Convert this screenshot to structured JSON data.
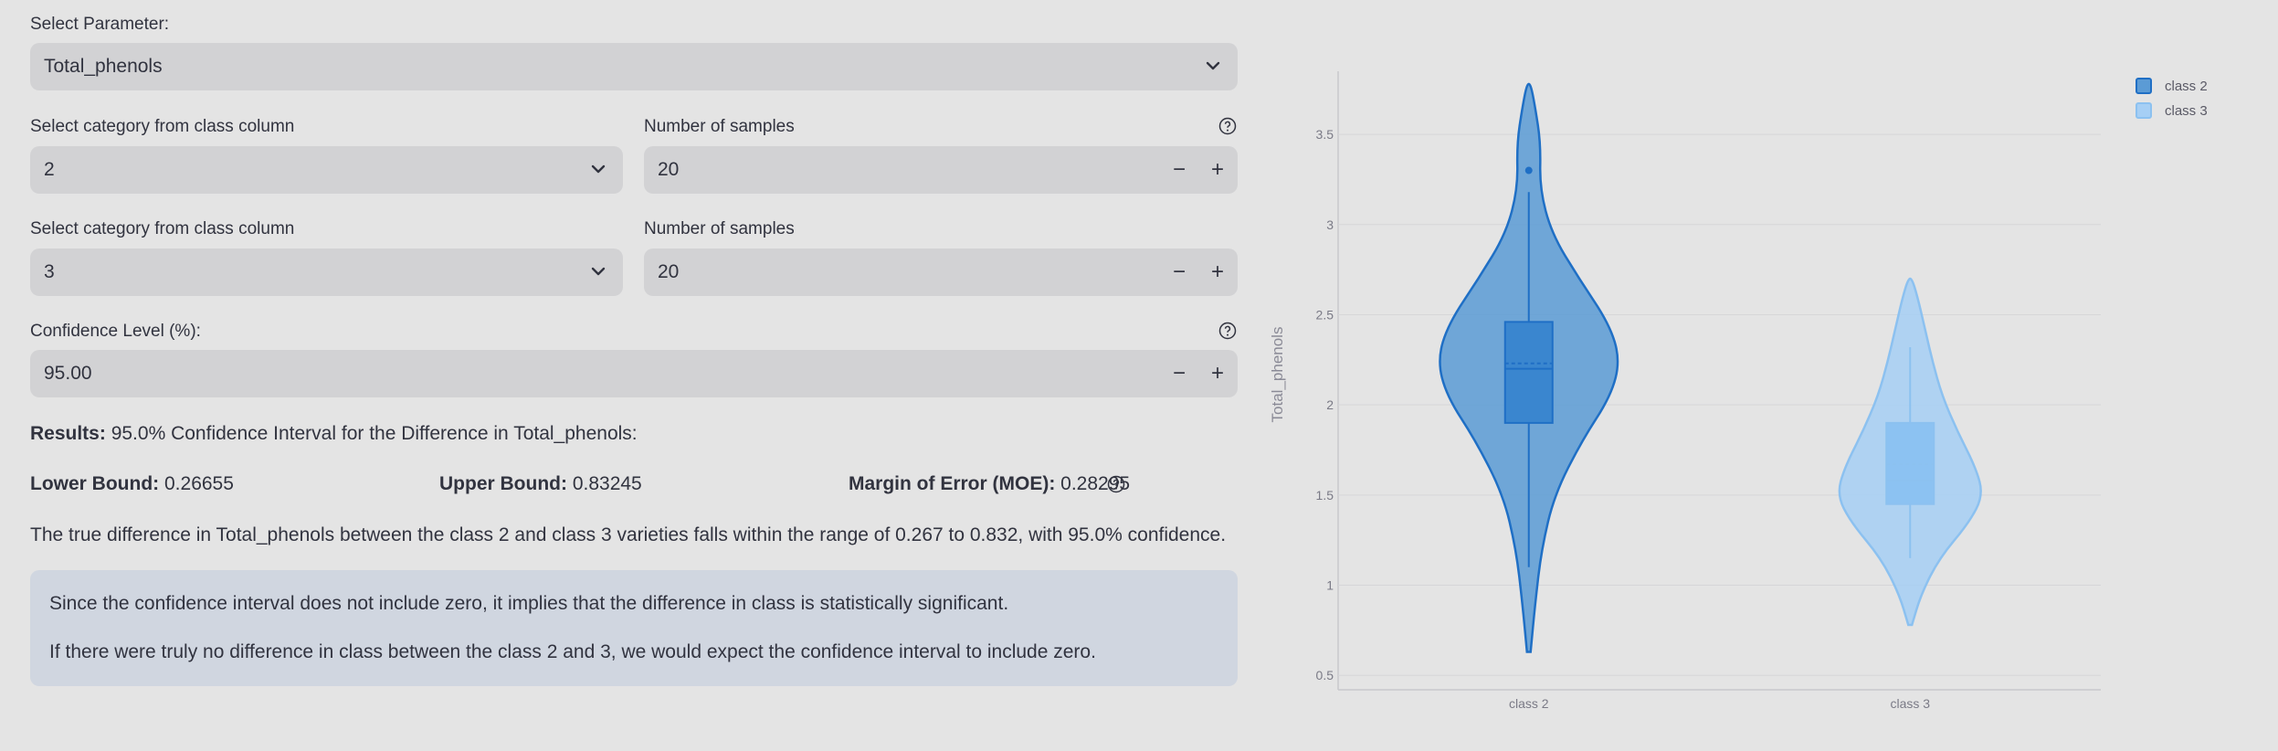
{
  "parameter": {
    "label": "Select Parameter:",
    "value": "Total_phenols"
  },
  "group1": {
    "category_label": "Select category from class column",
    "category_value": "2",
    "samples_label": "Number of samples",
    "samples_value": "20"
  },
  "group2": {
    "category_label": "Select category from class column",
    "category_value": "3",
    "samples_label": "Number of samples",
    "samples_value": "20"
  },
  "confidence": {
    "label": "Confidence Level (%):",
    "value": "95.00"
  },
  "results": {
    "heading": "Results:",
    "heading_text": "95.0% Confidence Interval for the Difference in Total_phenols:",
    "lower_label": "Lower Bound:",
    "lower_value": "0.26655",
    "upper_label": "Upper Bound:",
    "upper_value": "0.83245",
    "moe_label": "Margin of Error (MOE):",
    "moe_value": "0.28295",
    "summary": "The true difference in Total_phenols between the class 2 and class 3 varieties falls within the range of 0.267 to 0.832, with 95.0% confidence."
  },
  "info": {
    "line1": "Since the confidence interval does not include zero, it implies that the difference in class is statistically significant.",
    "line2": "If there were truly no difference in class between the class 2 and 3, we would expect the confidence interval to include zero."
  },
  "icons": {
    "dropdown": "chevron-down-icon",
    "help": "question-circle-icon",
    "minus": "minus-icon",
    "plus": "plus-icon"
  },
  "step_minus": "−",
  "step_plus": "+",
  "colors": {
    "class2_fill": "#5b9bd5",
    "class2_line": "#1f6fc5",
    "class3_fill": "#a6cff5",
    "class3_line": "#8cc1f0",
    "info_bg": "#d0d6e0"
  },
  "chart_data": {
    "type": "violin",
    "ylabel": "Total_phenols",
    "categories": [
      "class 2",
      "class 3"
    ],
    "y_ticks": [
      0.5,
      1,
      1.5,
      2,
      2.5,
      3,
      3.5
    ],
    "y_tick_labels": [
      "0.5",
      "1",
      "1.5",
      "2",
      "2.5",
      "3",
      "3.5"
    ],
    "ylim": [
      0.42,
      3.85
    ],
    "legend_position": "top-right",
    "series": [
      {
        "name": "class 2",
        "violin_min": 0.63,
        "violin_max": 3.78,
        "whisker_low": 1.1,
        "whisker_high": 3.18,
        "q1": 1.9,
        "median": 2.2,
        "mean": 2.23,
        "q3": 2.46,
        "outliers": [
          3.3
        ],
        "density": [
          [
            0.63,
            0.02
          ],
          [
            0.9,
            0.07
          ],
          [
            1.2,
            0.14
          ],
          [
            1.5,
            0.28
          ],
          [
            1.8,
            0.58
          ],
          [
            2.05,
            0.9
          ],
          [
            2.25,
            1.0
          ],
          [
            2.45,
            0.88
          ],
          [
            2.7,
            0.55
          ],
          [
            2.95,
            0.25
          ],
          [
            3.2,
            0.12
          ],
          [
            3.45,
            0.13
          ],
          [
            3.65,
            0.07
          ],
          [
            3.78,
            0.02
          ]
        ]
      },
      {
        "name": "class 3",
        "violin_min": 0.78,
        "violin_max": 2.7,
        "whisker_low": 1.15,
        "whisker_high": 2.32,
        "q1": 1.45,
        "median": 1.58,
        "mean": 1.67,
        "q3": 1.9,
        "outliers": [],
        "density": [
          [
            0.78,
            0.02
          ],
          [
            0.95,
            0.12
          ],
          [
            1.15,
            0.32
          ],
          [
            1.35,
            0.65
          ],
          [
            1.5,
            0.8
          ],
          [
            1.65,
            0.72
          ],
          [
            1.85,
            0.52
          ],
          [
            2.05,
            0.35
          ],
          [
            2.25,
            0.24
          ],
          [
            2.45,
            0.15
          ],
          [
            2.6,
            0.08
          ],
          [
            2.7,
            0.02
          ]
        ]
      }
    ]
  }
}
